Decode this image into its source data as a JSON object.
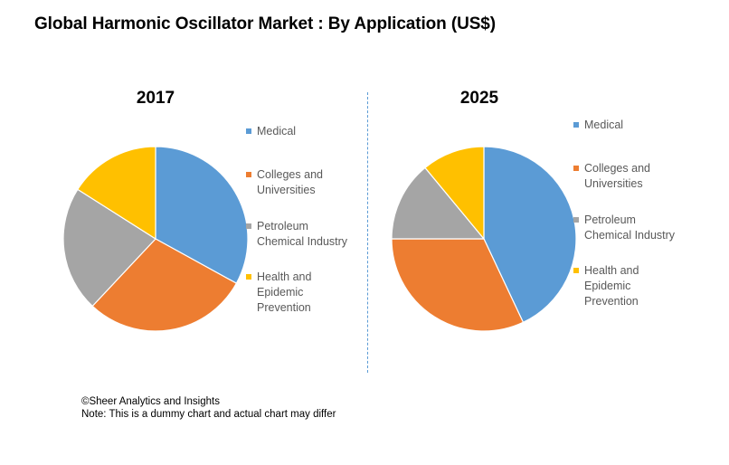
{
  "title": "Global Harmonic Oscillator Market : By Application (US$)",
  "categories": [
    "Medical",
    "Colleges and Universities",
    "Petroleum Chemical Industry",
    "Health and Epidemic Prevention"
  ],
  "colors": [
    "#5b9bd5",
    "#ed7d31",
    "#a5a5a5",
    "#ffc000"
  ],
  "chart_data": [
    {
      "type": "pie",
      "title": "2017",
      "categories": [
        "Medical",
        "Colleges and Universities",
        "Petroleum Chemical Industry",
        "Health and Epidemic Prevention"
      ],
      "values": [
        33,
        29,
        22,
        16
      ],
      "legend_position": "right"
    },
    {
      "type": "pie",
      "title": "2025",
      "categories": [
        "Medical",
        "Colleges and Universities",
        "Petroleum Chemical Industry",
        "Health and Epidemic Prevention"
      ],
      "values": [
        43,
        32,
        14,
        11
      ],
      "legend_position": "right"
    }
  ],
  "legend_lines": [
    [
      "Medical"
    ],
    [
      "Colleges and",
      "Universities"
    ],
    [
      "Petroleum",
      "Chemical Industry"
    ],
    [
      "Health and",
      "Epidemic",
      "Prevention"
    ]
  ],
  "footer": {
    "copyright": "©Sheer Analytics and Insights",
    "note": "Note: This is a dummy chart and actual chart may differ"
  }
}
